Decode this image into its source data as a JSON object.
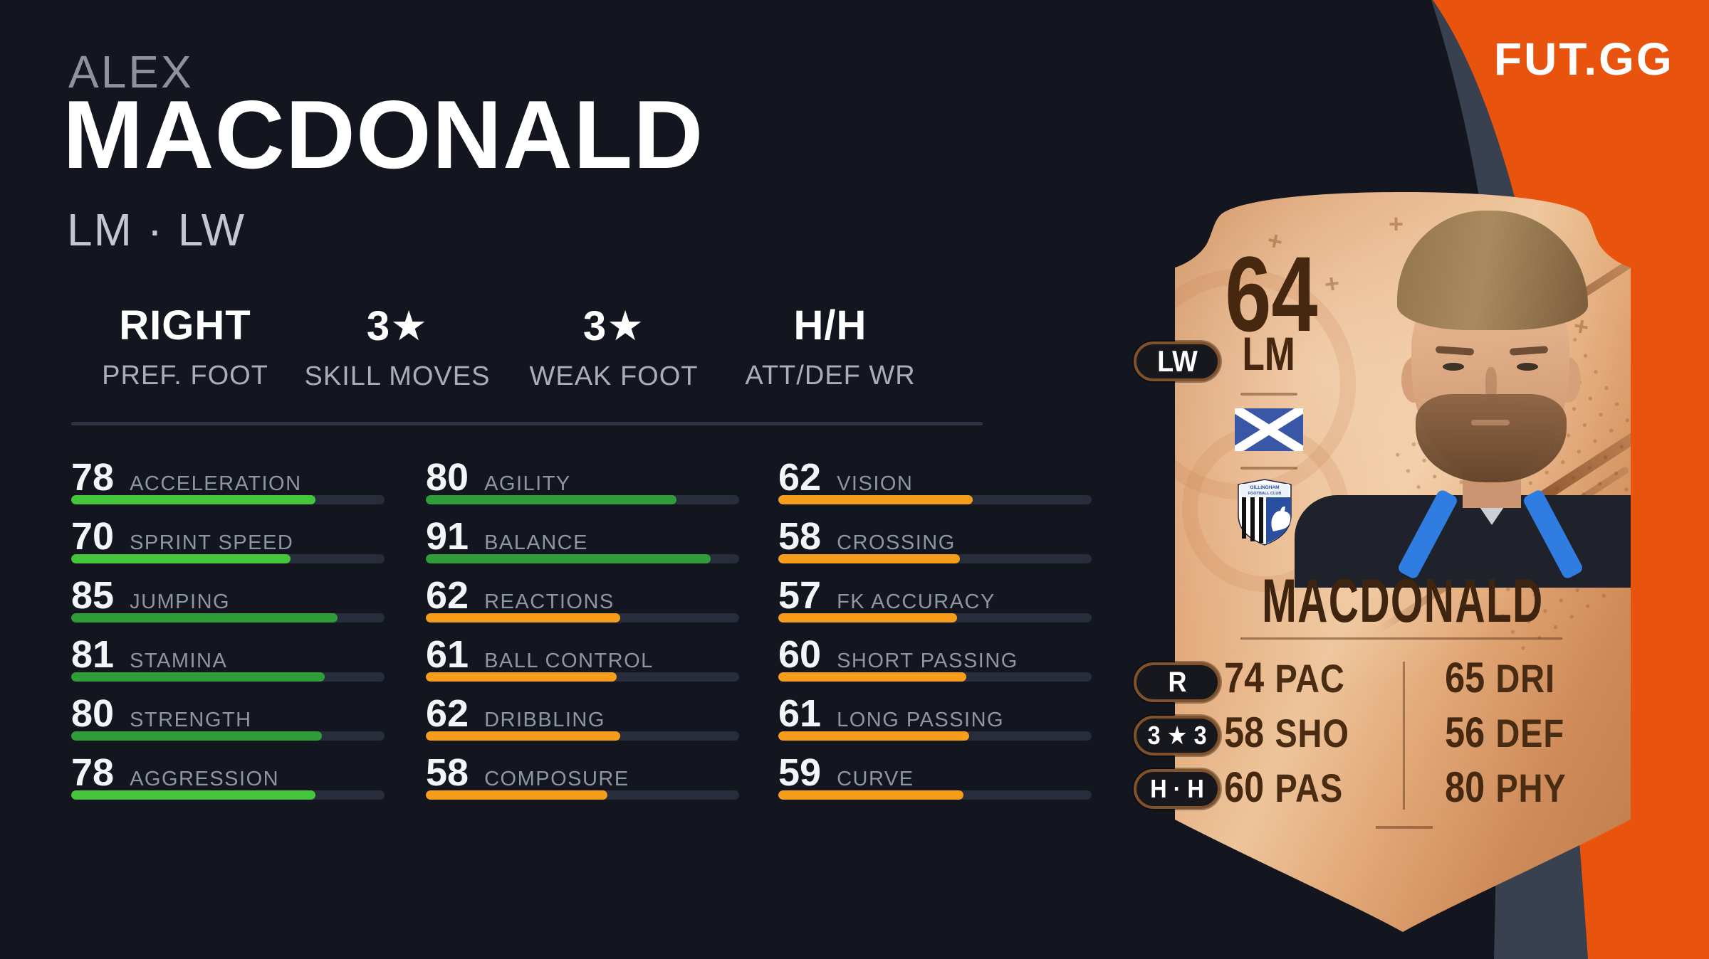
{
  "page": {
    "logo": "FUT.GG"
  },
  "player": {
    "first_name": "ALEX",
    "last_name": "MACDONALD",
    "positions": "LM · LW"
  },
  "summary": {
    "items": [
      {
        "value": "RIGHT",
        "label": "PREF. FOOT"
      },
      {
        "value": "3★",
        "label": "SKILL MOVES"
      },
      {
        "value": "3★",
        "label": "WEAK FOOT"
      },
      {
        "value": "H/H",
        "label": "ATT/DEF WR"
      }
    ]
  },
  "stats": {
    "col1": [
      {
        "label": "ACCELERATION",
        "value": 78
      },
      {
        "label": "SPRINT SPEED",
        "value": 70
      },
      {
        "label": "JUMPING",
        "value": 85
      },
      {
        "label": "STAMINA",
        "value": 81
      },
      {
        "label": "STRENGTH",
        "value": 80
      },
      {
        "label": "AGGRESSION",
        "value": 78
      }
    ],
    "col2": [
      {
        "label": "AGILITY",
        "value": 80
      },
      {
        "label": "BALANCE",
        "value": 91
      },
      {
        "label": "REACTIONS",
        "value": 62
      },
      {
        "label": "BALL CONTROL",
        "value": 61
      },
      {
        "label": "DRIBBLING",
        "value": 62
      },
      {
        "label": "COMPOSURE",
        "value": 58
      }
    ],
    "col3": [
      {
        "label": "VISION",
        "value": 62
      },
      {
        "label": "CROSSING",
        "value": 58
      },
      {
        "label": "FK ACCURACY",
        "value": 57
      },
      {
        "label": "SHORT PASSING",
        "value": 60
      },
      {
        "label": "LONG PASSING",
        "value": 61
      },
      {
        "label": "CURVE",
        "value": 59
      }
    ]
  },
  "card": {
    "rating": "64",
    "position": "LM",
    "alt_position": "LW",
    "name": "MACDONALD",
    "foot_badge": "R",
    "skill_weak_badge": "3 ★ 3",
    "work_rate_badge": "H · H",
    "club_banner_line1": "GILLINGHAM",
    "club_banner_line2": "FOOTBALL CLUB",
    "stats": [
      {
        "value": "74",
        "label": "PAC"
      },
      {
        "value": "58",
        "label": "SHO"
      },
      {
        "value": "60",
        "label": "PAS"
      },
      {
        "value": "65",
        "label": "DRI"
      },
      {
        "value": "56",
        "label": "DEF"
      },
      {
        "value": "80",
        "label": "PHY"
      }
    ]
  },
  "colors": {
    "background": "#14161f",
    "orange": "#e8540e",
    "slate_band": "#39404f",
    "bar_track": "#272d3b",
    "bar_high": "#2f9e3a",
    "bar_mid": "#45c53c",
    "bar_low": "#f79d1c",
    "bronze_text": "#45280f"
  }
}
